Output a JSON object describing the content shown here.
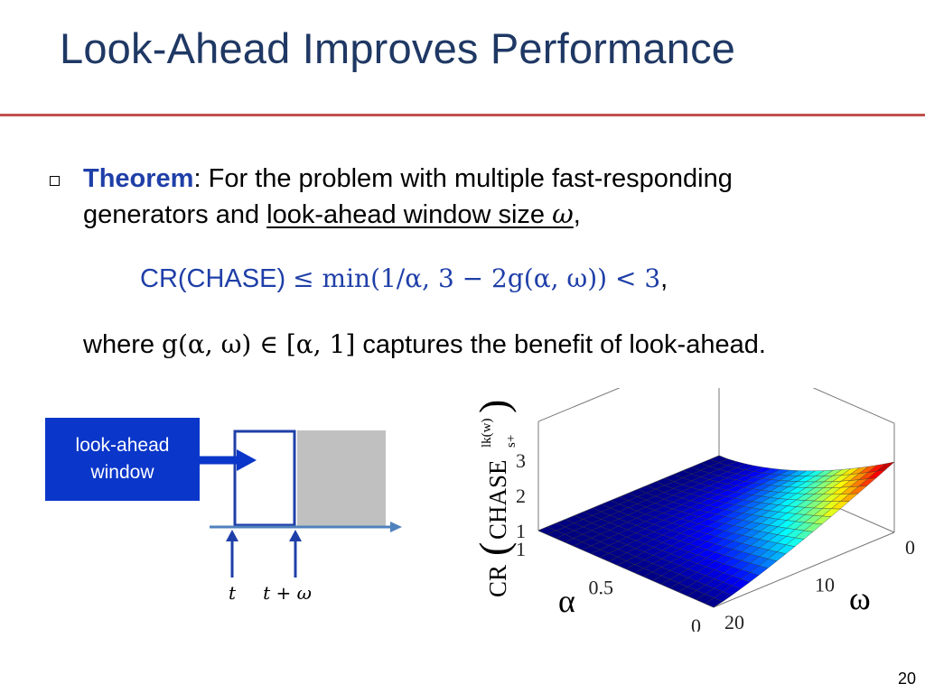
{
  "slide": {
    "title": "Look-Ahead Improves Performance",
    "page_number": "20"
  },
  "theorem": {
    "keyword": "Theorem",
    "line1_rest": ": For the problem with multiple fast-responding",
    "line2_prefix": "generators and ",
    "line2_underlined": "look-ahead window size ",
    "line2_symbol": "ω",
    "line2_suffix": ",",
    "formula_lhs": "CR(CHASE) ",
    "formula_rhs": "≤ min(1/α, 3 − 2g(α, ω)) < 3",
    "formula_suffix": ",",
    "where_prefix": "where ",
    "where_math": "g(α, ω) ∈ [α, 1]",
    "where_suffix": " captures the benefit of look-ahead."
  },
  "diagram": {
    "box_line1": "look-ahead",
    "box_line2": "window",
    "label_t": "t",
    "label_t_omega": "t + ω",
    "colors": {
      "box": "#0a36c9",
      "window": "#1f3fa8",
      "future": "#c0c0c0",
      "axis": "#4f81bd"
    }
  },
  "chart_data": {
    "type": "surface",
    "x_name": "α",
    "y_name": "ω",
    "z_name": "CR(CHASE_{s+}^{lk(w)})",
    "x_range": [
      0,
      1
    ],
    "y_range": [
      0,
      20
    ],
    "z_range": [
      1,
      3
    ],
    "x_ticks": [
      "0",
      "0.5",
      "1"
    ],
    "y_ticks": [
      "0",
      "10",
      "20"
    ],
    "z_ticks": [
      "1",
      "2",
      "3"
    ],
    "z_label_main": "CR",
    "z_label_inner": "CHASE",
    "z_label_sup": "lk(w)",
    "z_label_sub": "s+",
    "corner_values": [
      {
        "alpha": 0,
        "omega": 0,
        "cr": 3.0
      },
      {
        "alpha": 0,
        "omega": 20,
        "cr": 1.0
      },
      {
        "alpha": 1,
        "omega": 0,
        "cr": 1.0
      },
      {
        "alpha": 1,
        "omega": 20,
        "cr": 1.0
      }
    ],
    "colormap": "jet",
    "grid": true
  }
}
